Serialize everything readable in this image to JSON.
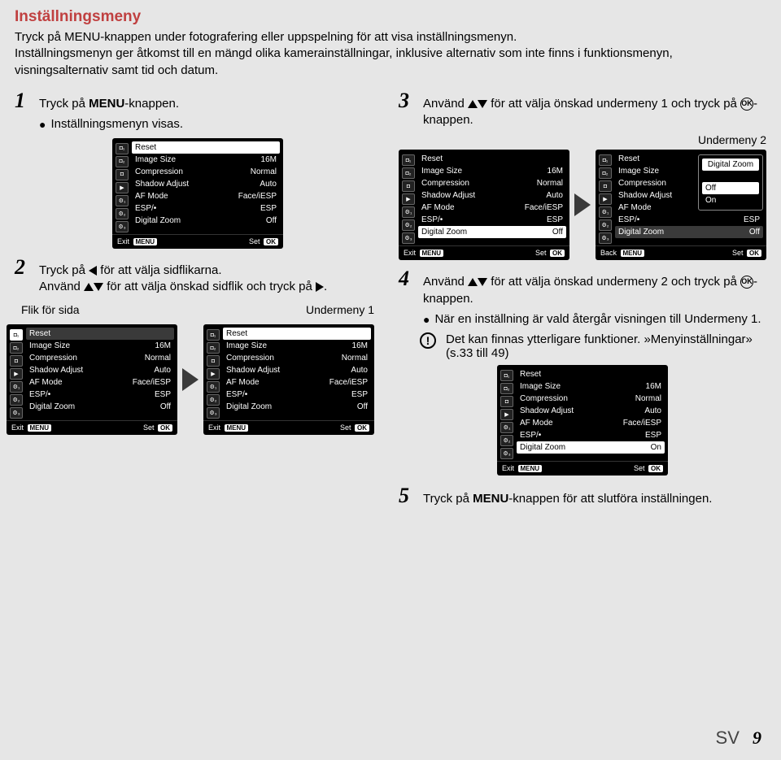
{
  "header": {
    "title": "Inställningsmeny",
    "desc1": "Tryck på MENU-knappen under fotografering eller uppspelning för att visa inställningsmenyn.",
    "desc2_pre": "Inställningsmenyn",
    "desc2_post": " ger åtkomst till en mängd olika kamerainställningar, inklusive alternativ som inte finns i funktionsmenyn, visningsalternativ samt tid och datum."
  },
  "steps": {
    "s1_text_pre": "Tryck på ",
    "s1_text_bold": "MENU",
    "s1_text_post": "-knappen.",
    "s1_bullet": "Inställningsmenyn visas.",
    "s2_line1": "Tryck på ◁ för att välja sidflikarna.",
    "s2_line2": "Använd △▽ för att välja önskad sidflik och tryck på ▷.",
    "flik_label": "Flik för sida",
    "under1_label": "Undermeny 1",
    "s3_line1": "Använd △▽ för att välja önskad undermeny 1 och tryck på ",
    "ok_icon": "OK",
    "s3_line1_post": "-knappen.",
    "under2_label": "Undermeny 2",
    "s4_line1": "Använd △▽ för att välja önskad undermeny 2 och tryck på ",
    "s4_line1_post": "-knappen.",
    "s4_bullet": "När en inställning är vald återgår visningen till Undermeny 1.",
    "s4_note": "Det kan finnas ytterligare funktioner. »Menyinställningar» (s.33 till 49)",
    "s5_text": "Tryck på MENU-knappen för att slutföra inställningen."
  },
  "menu_rows": [
    {
      "label": "Reset",
      "value": ""
    },
    {
      "label": "Image Size",
      "value": "16M"
    },
    {
      "label": "Compression",
      "value": "Normal"
    },
    {
      "label": "Shadow Adjust",
      "value": "Auto"
    },
    {
      "label": "AF Mode",
      "value": "Face/iESP"
    },
    {
      "label": "ESP/•",
      "value": "ESP"
    },
    {
      "label": "Digital Zoom",
      "value": "Off"
    }
  ],
  "menu_rows_on": [
    {
      "label": "Reset",
      "value": ""
    },
    {
      "label": "Image Size",
      "value": "16M"
    },
    {
      "label": "Compression",
      "value": "Normal"
    },
    {
      "label": "Shadow Adjust",
      "value": "Auto"
    },
    {
      "label": "AF Mode",
      "value": "Face/iESP"
    },
    {
      "label": "ESP/•",
      "value": "ESP"
    },
    {
      "label": "Digital Zoom",
      "value": "On"
    }
  ],
  "footer_btns": {
    "exit": "Exit",
    "menu": "MENU",
    "set": "Set",
    "ok": "OK",
    "back": "Back"
  },
  "popup": {
    "title": "Digital Zoom",
    "opt1": "Off",
    "opt2": "On"
  },
  "tab_glyphs": [
    "◘₁",
    "◘₂",
    "◘",
    "▶",
    "⚙₁",
    "⚙₂",
    "⚙₃"
  ],
  "page": {
    "lang": "SV",
    "num": "9"
  }
}
